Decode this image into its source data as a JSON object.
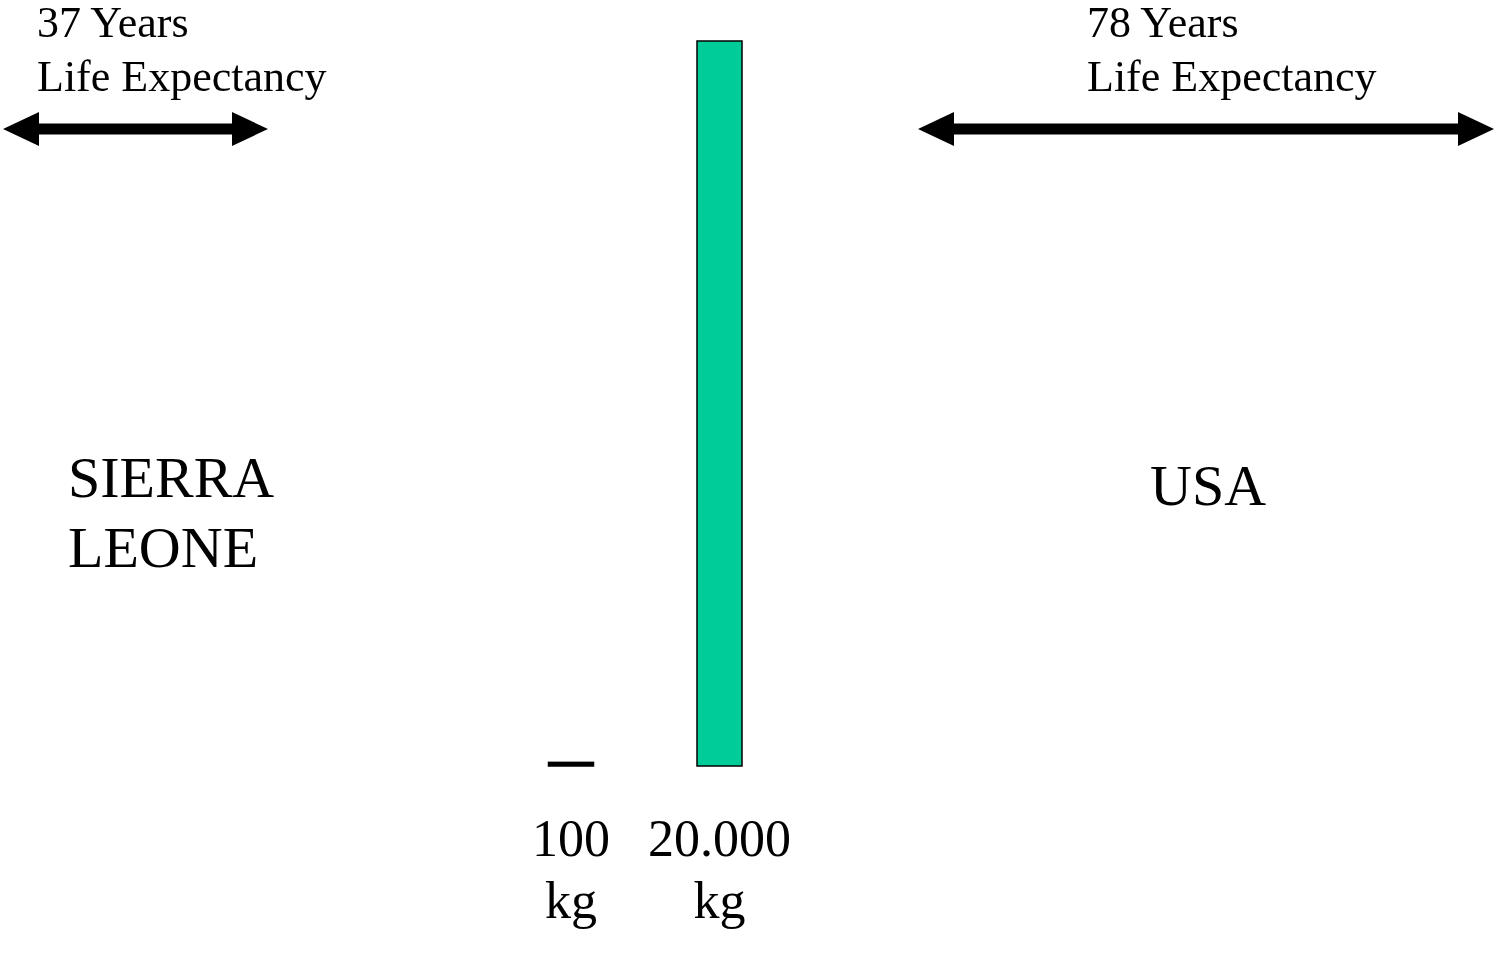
{
  "chart_data": {
    "type": "bar",
    "categories": [
      null,
      null
    ],
    "values": [
      100,
      20000
    ],
    "colors": [
      "#000000",
      "#00cc99"
    ],
    "value_labels": [
      "100 kg",
      "20.000 kg"
    ],
    "annotations": [
      "37 Years\nLife Expectancy",
      "78 Years\nLife Expectancy",
      "SIERRA\nLEONE",
      "USA"
    ]
  }
}
